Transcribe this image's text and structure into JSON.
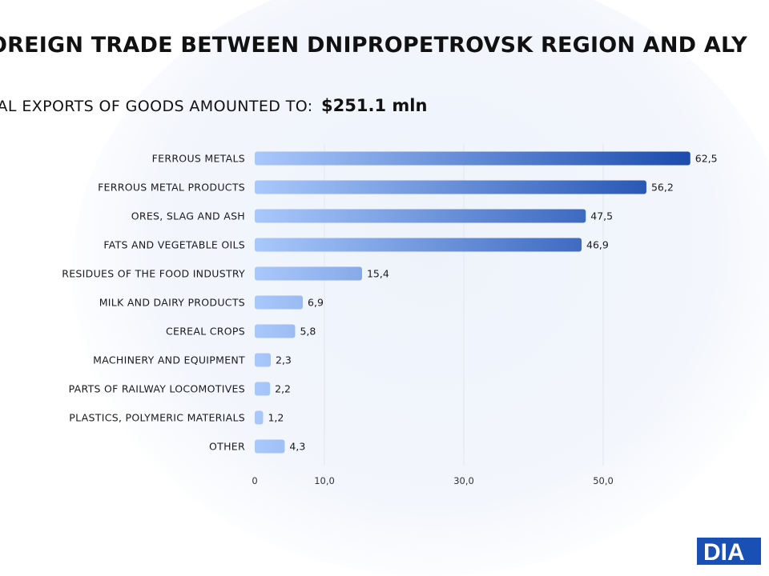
{
  "header": {
    "title": "OREIGN TRADE BETWEEN DNIPROPETROVSK REGION AND ALY",
    "subtitle_prefix": "TAL EXPORTS OF GOODS AMOUNTED TO:",
    "subtitle_amount": "$251.1 mln"
  },
  "logo": {
    "text": "DIA",
    "color": "#1a4fb3"
  },
  "colors": {
    "bar_light": "#a9c8fb",
    "bar_dark": "#0b3da5",
    "grid": "#e3e6ec"
  },
  "chart_data": {
    "type": "bar",
    "orientation": "horizontal",
    "categories": [
      "FERROUS METALS",
      "FERROUS METAL PRODUCTS",
      "ORES, SLAG AND ASH",
      "FATS AND VEGETABLE OILS",
      "RESIDUES OF THE FOOD INDUSTRY",
      "MILK AND DAIRY PRODUCTS",
      "CEREAL CROPS",
      "MACHINERY AND EQUIPMENT",
      "PARTS OF RAILWAY LOCOMOTIVES",
      "PLASTICS, POLYMERIC MATERIALS",
      "OTHER"
    ],
    "values": [
      62.5,
      56.2,
      47.5,
      46.9,
      15.4,
      6.9,
      5.8,
      2.3,
      2.2,
      1.2,
      4.3
    ],
    "value_labels": [
      "62,5",
      "56,2",
      "47,5",
      "46,9",
      "15,4",
      "6,9",
      "5,8",
      "2,3",
      "2,2",
      "1,2",
      "4,3"
    ],
    "ticks": [
      0,
      10,
      30,
      50
    ],
    "tick_labels": [
      "0",
      "10,0",
      "30,0",
      "50,0"
    ],
    "grid": true,
    "title": "",
    "xlabel": "",
    "ylabel": ""
  }
}
